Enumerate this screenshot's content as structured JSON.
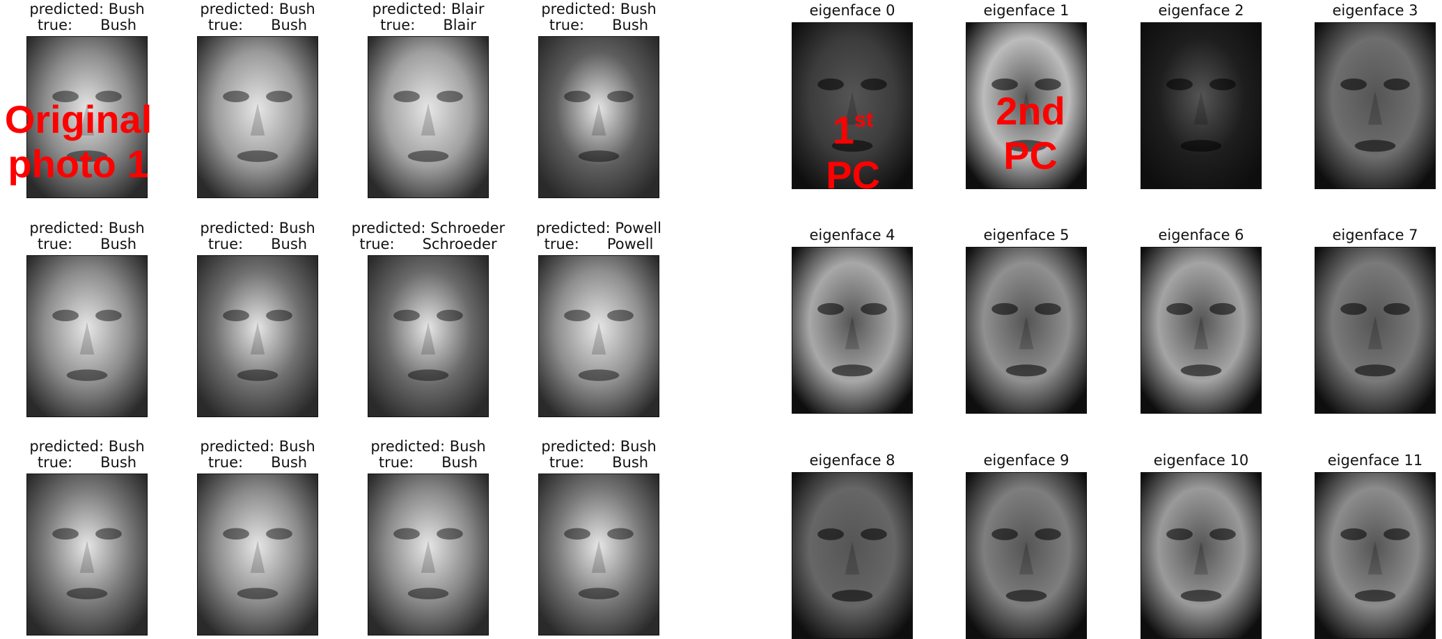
{
  "predictions": [
    {
      "predicted": "predicted: Bush",
      "true": "true:      Bush",
      "tone": "#8a8a8a"
    },
    {
      "predicted": "predicted: Bush",
      "true": "true:      Bush",
      "tone": "#9a9a9a"
    },
    {
      "predicted": "predicted: Blair",
      "true": "true:      Blair",
      "tone": "#a0a0a0"
    },
    {
      "predicted": "predicted: Bush",
      "true": "true:      Bush",
      "tone": "#5e5e5e"
    },
    {
      "predicted": "predicted: Bush",
      "true": "true:      Bush",
      "tone": "#8c8c8c"
    },
    {
      "predicted": "predicted: Bush",
      "true": "true:      Bush",
      "tone": "#707070"
    },
    {
      "predicted": "predicted: Schroeder",
      "true": "true:      Schroeder",
      "tone": "#6a6a6a"
    },
    {
      "predicted": "predicted: Powell",
      "true": "true:      Powell",
      "tone": "#8e8e8e"
    },
    {
      "predicted": "predicted: Bush",
      "true": "true:      Bush",
      "tone": "#7a7a7a"
    },
    {
      "predicted": "predicted: Bush",
      "true": "true:      Bush",
      "tone": "#8a8a8a"
    },
    {
      "predicted": "predicted: Bush",
      "true": "true:      Bush",
      "tone": "#888888"
    },
    {
      "predicted": "predicted: Bush",
      "true": "true:      Bush",
      "tone": "#787878"
    }
  ],
  "eigenfaces": [
    {
      "label": "eigenface 0",
      "tone": "#3c3c3c"
    },
    {
      "label": "eigenface 1",
      "tone": "#bcbcbc"
    },
    {
      "label": "eigenface 2",
      "tone": "#1e1e1e"
    },
    {
      "label": "eigenface 3",
      "tone": "#6e6e6e"
    },
    {
      "label": "eigenface 4",
      "tone": "#a8a8a8"
    },
    {
      "label": "eigenface 5",
      "tone": "#909090"
    },
    {
      "label": "eigenface 6",
      "tone": "#a4a4a4"
    },
    {
      "label": "eigenface 7",
      "tone": "#7a7a7a"
    },
    {
      "label": "eigenface 8",
      "tone": "#666666"
    },
    {
      "label": "eigenface 9",
      "tone": "#7e7e7e"
    },
    {
      "label": "eigenface 10",
      "tone": "#9a9a9a"
    },
    {
      "label": "eigenface 11",
      "tone": "#8c8c8c"
    }
  ],
  "annotations": {
    "original_line1": "Original",
    "original_line2": "photo 1",
    "pc1_num": "1",
    "pc1_sup": "st",
    "pc1_word": "PC",
    "pc2_line1": "2nd",
    "pc2_line2": "PC",
    "color": "#ff0000"
  }
}
